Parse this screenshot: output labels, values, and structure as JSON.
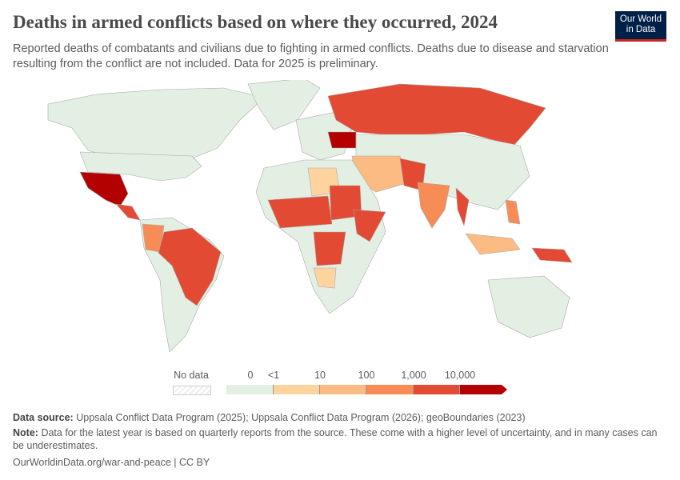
{
  "title": "Deaths in armed conflicts based on where they occurred, 2024",
  "subtitle": "Reported deaths of combatants and civilians due to fighting in armed conflicts. Deaths due to disease and starvation resulting from the conflict are not included. Data for 2025 is preliminary.",
  "logo": {
    "line1": "Our World",
    "line2": "in Data"
  },
  "colors": {
    "zero": "#e3efe3",
    "lt1": "#fdd49e",
    "10": "#fdbb84",
    "100": "#f88c57",
    "1000": "#e34a33",
    "10000": "#b30000",
    "border": "#aaa"
  },
  "legend": {
    "no_data": "No data",
    "labels": [
      "0",
      "<1",
      "10",
      "100",
      "1,000",
      "10,000"
    ]
  },
  "footer": {
    "source_label": "Data source:",
    "source": "Uppsala Conflict Data Program (2025); Uppsala Conflict Data Program (2026); geoBoundaries (2023)",
    "note_label": "Note:",
    "note": "Data for the latest year is based on quarterly reports from the source. These come with a higher level of uncertainty, and in many cases can be underestimates.",
    "url": "OurWorldinData.org/war-and-peace | CC BY"
  }
}
